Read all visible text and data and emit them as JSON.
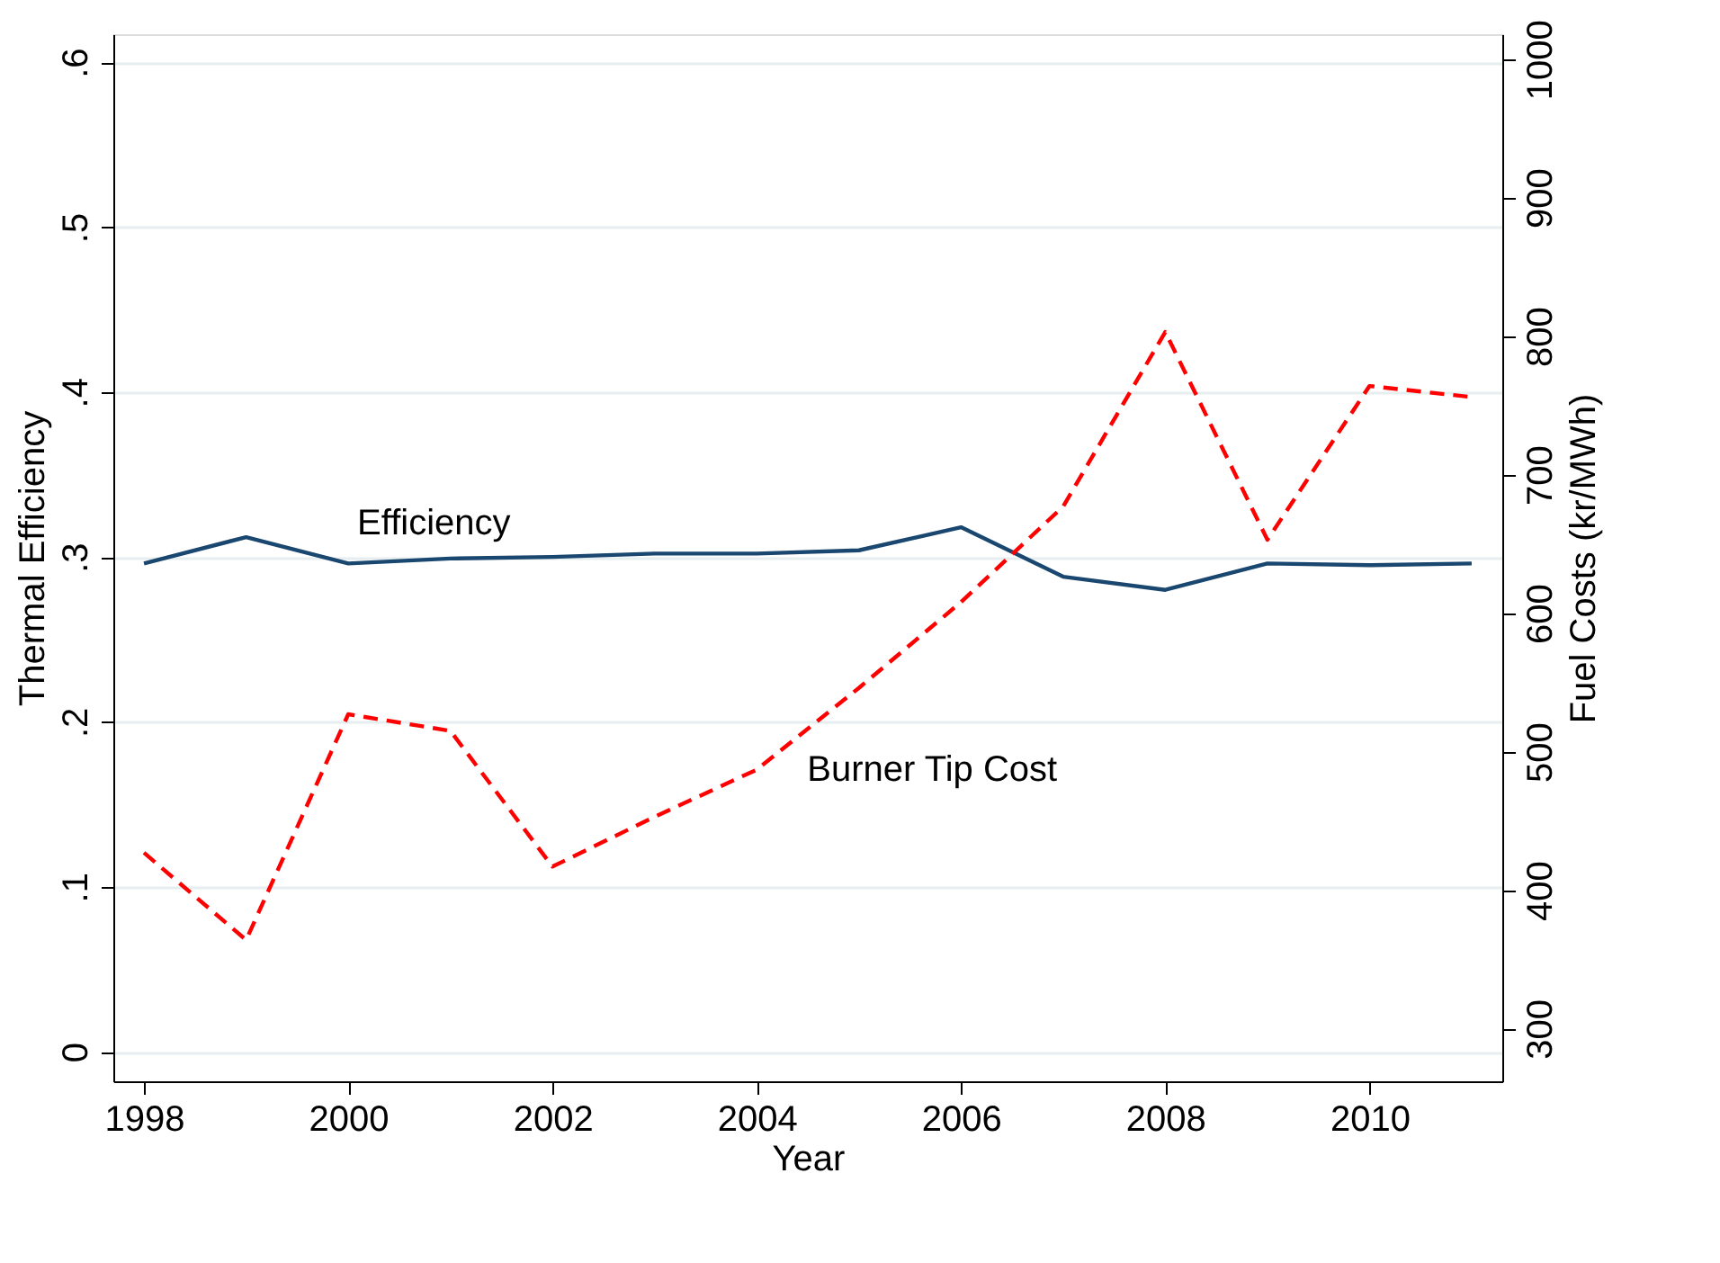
{
  "chart_data": {
    "type": "line",
    "xlabel": "Year",
    "ylabel": "Thermal Efficiency",
    "y2label": "Fuel Costs (kr/MWh)",
    "x": [
      1998,
      1999,
      2000,
      2001,
      2002,
      2003,
      2004,
      2005,
      2006,
      2007,
      2008,
      2009,
      2010,
      2011
    ],
    "series": [
      {
        "name": "Efficiency",
        "color": "#1a476f",
        "line_style": "solid",
        "values": [
          0.296,
          0.312,
          0.296,
          0.299,
          0.3,
          0.302,
          0.302,
          0.304,
          0.318,
          0.288,
          0.28,
          0.296,
          0.295,
          0.296
        ]
      },
      {
        "name": "Burner Tip Cost",
        "color": "#ff0000",
        "line_style": "dashed",
        "axis": "y2",
        "values": [
          427,
          364,
          527,
          515,
          417,
          453,
          487,
          546,
          608,
          677,
          803,
          653,
          764,
          756
        ]
      }
    ],
    "xlim": [
      1997.7,
      2011.3
    ],
    "xticks": [
      1998,
      2000,
      2002,
      2004,
      2006,
      2008,
      2010
    ],
    "ylim": [
      -0.018,
      0.617
    ],
    "yticks": [
      0,
      {
        "value": 0.1,
        "label": ".1"
      },
      {
        "value": 0.2,
        "label": ".2"
      },
      {
        "value": 0.3,
        "label": ".3"
      },
      {
        "value": 0.4,
        "label": ".4"
      },
      {
        "value": 0.5,
        "label": ".5"
      },
      {
        "value": 0.6,
        "label": ".6"
      }
    ],
    "y2lim": [
      262,
      1018
    ],
    "y2ticks": [
      300,
      400,
      500,
      600,
      700,
      800,
      900,
      1000
    ],
    "grid": "y"
  }
}
